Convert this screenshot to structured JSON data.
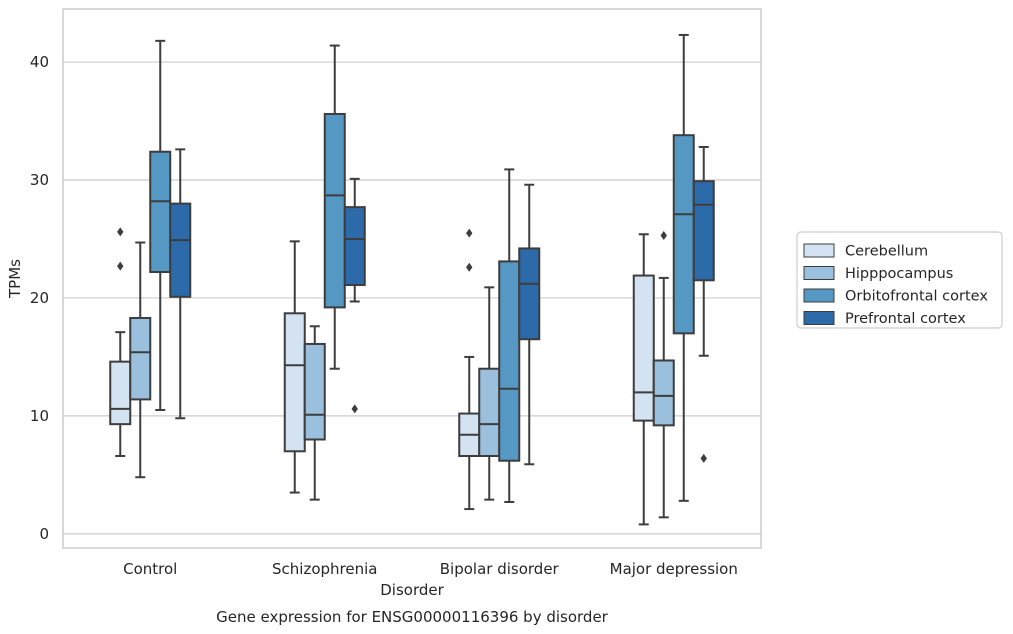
{
  "chart_data": {
    "type": "boxplot",
    "title": "",
    "caption": "Gene expression for ENSG00000116396 by disorder",
    "xlabel": "Disorder",
    "ylabel": "TPMs",
    "ylim": [
      -1.2,
      44.5
    ],
    "yticks": [
      0,
      10,
      20,
      30,
      40
    ],
    "grid": "horizontal",
    "legend_position": "outside-right",
    "categories": [
      "Control",
      "Schizophrenia",
      "Bipolar disorder",
      "Major depression"
    ],
    "series": [
      {
        "name": "Cerebellum",
        "color": "#d3e3f2",
        "boxes": [
          {
            "whisker_low": 6.6,
            "q1": 9.3,
            "median": 10.6,
            "q3": 14.6,
            "whisker_high": 17.1,
            "outliers": [
              22.7,
              25.6
            ]
          },
          {
            "whisker_low": 3.5,
            "q1": 7.0,
            "median": 14.3,
            "q3": 18.7,
            "whisker_high": 24.8,
            "outliers": []
          },
          {
            "whisker_low": 2.1,
            "q1": 6.6,
            "median": 8.4,
            "q3": 10.2,
            "whisker_high": 15.0,
            "outliers": [
              22.6,
              25.5
            ]
          },
          {
            "whisker_low": 0.8,
            "q1": 9.6,
            "median": 12.0,
            "q3": 21.9,
            "whisker_high": 25.4,
            "outliers": []
          }
        ]
      },
      {
        "name": "Hipppocampus",
        "color": "#9ac0dd",
        "boxes": [
          {
            "whisker_low": 4.8,
            "q1": 11.4,
            "median": 15.4,
            "q3": 18.3,
            "whisker_high": 24.7,
            "outliers": []
          },
          {
            "whisker_low": 2.9,
            "q1": 8.0,
            "median": 10.1,
            "q3": 16.1,
            "whisker_high": 17.6,
            "outliers": []
          },
          {
            "whisker_low": 2.9,
            "q1": 6.6,
            "median": 9.3,
            "q3": 14.0,
            "whisker_high": 20.9,
            "outliers": []
          },
          {
            "whisker_low": 1.4,
            "q1": 9.2,
            "median": 11.7,
            "q3": 14.7,
            "whisker_high": 21.7,
            "outliers": [
              25.3
            ]
          }
        ]
      },
      {
        "name": "Orbitofrontal cortex",
        "color": "#5698c4",
        "boxes": [
          {
            "whisker_low": 10.5,
            "q1": 22.2,
            "median": 28.2,
            "q3": 32.4,
            "whisker_high": 41.8,
            "outliers": []
          },
          {
            "whisker_low": 14.0,
            "q1": 19.2,
            "median": 28.7,
            "q3": 35.6,
            "whisker_high": 41.4,
            "outliers": []
          },
          {
            "whisker_low": 2.7,
            "q1": 6.2,
            "median": 12.3,
            "q3": 23.1,
            "whisker_high": 30.9,
            "outliers": []
          },
          {
            "whisker_low": 2.8,
            "q1": 17.0,
            "median": 27.1,
            "q3": 33.8,
            "whisker_high": 42.3,
            "outliers": []
          }
        ]
      },
      {
        "name": "Prefrontal cortex",
        "color": "#2c6aaa",
        "boxes": [
          {
            "whisker_low": 9.8,
            "q1": 20.1,
            "median": 24.9,
            "q3": 28.0,
            "whisker_high": 32.6,
            "outliers": []
          },
          {
            "whisker_low": 19.7,
            "q1": 21.1,
            "median": 25.0,
            "q3": 27.7,
            "whisker_high": 30.1,
            "outliers": [
              10.6
            ]
          },
          {
            "whisker_low": 5.9,
            "q1": 16.5,
            "median": 21.2,
            "q3": 24.2,
            "whisker_high": 29.6,
            "outliers": []
          },
          {
            "whisker_low": 15.1,
            "q1": 21.5,
            "median": 27.9,
            "q3": 29.9,
            "whisker_high": 32.8,
            "outliers": [
              6.4
            ]
          }
        ]
      }
    ]
  }
}
